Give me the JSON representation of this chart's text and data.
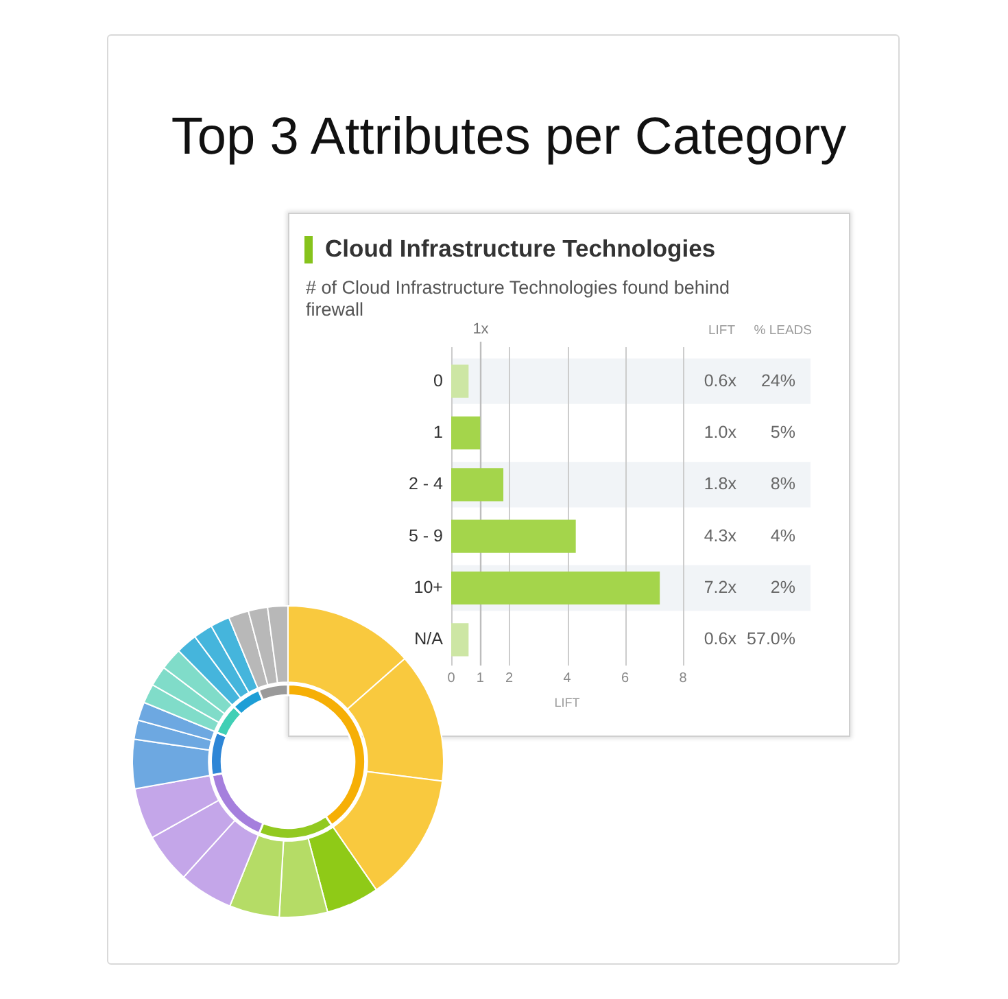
{
  "chart_data": [
    {
      "type": "other",
      "title": "Top 3 Attributes per Category"
    },
    {
      "type": "bar",
      "orientation": "horizontal",
      "title": "Cloud Infrastructure Technologies",
      "subtitle": "# of Cloud Infrastructure Technologies found behind firewall",
      "xlabel": "LIFT",
      "categories": [
        "0",
        "1",
        "2 - 4",
        "5 - 9",
        "10+",
        "N/A"
      ],
      "values": [
        0.6,
        1.0,
        1.8,
        4.3,
        7.2,
        0.6
      ],
      "colors": [
        "#cde6a4",
        "#a4d54b",
        "#a4d54b",
        "#a4d54b",
        "#a4d54b",
        "#cde6a4"
      ],
      "value_labels": [
        "0.6x",
        "1.0x",
        "1.8x",
        "4.3x",
        "7.2x",
        "0.6x"
      ],
      "xlim": [
        0,
        8
      ],
      "xticks": [
        0,
        1,
        2,
        4,
        6,
        8
      ],
      "grid": "x",
      "ref_lines": [
        {
          "axis": "x",
          "value": 1,
          "label": "1x",
          "color": "#bdbdbd"
        }
      ],
      "bands": [
        {
          "axis": "y",
          "from": "0",
          "to": "0",
          "color": "#f1f4f7"
        },
        {
          "axis": "y",
          "from": "2 - 4",
          "to": "2 - 4",
          "color": "#f1f4f7"
        },
        {
          "axis": "y",
          "from": "10+",
          "to": "10+",
          "color": "#f1f4f7"
        }
      ],
      "annotations": [
        "LIFT",
        "% LEADS",
        "24%",
        "5%",
        "8%",
        "4%",
        "2%",
        "57.0%"
      ]
    },
    {
      "type": "donut",
      "categories": [
        null,
        null,
        null,
        null,
        null,
        null,
        null,
        null,
        null,
        null,
        null,
        null,
        null,
        null,
        null,
        null,
        null,
        null,
        null,
        null,
        null
      ],
      "values": [
        13.5,
        13.5,
        13.4,
        5.5,
        5.0,
        5.2,
        5.6,
        5.2,
        5.3,
        5.1,
        2.0,
        1.9,
        2.0,
        2.1,
        2.3,
        2.2,
        2.0,
        2.0,
        2.1,
        2.0,
        2.1
      ],
      "colors": [
        "#f9c93e",
        "#f9c93e",
        "#f9c93e",
        "#8fca17",
        "#b5dc66",
        "#b5dc66",
        "#c4a6e9",
        "#c4a6e9",
        "#c4a6e9",
        "#6da8e1",
        "#6da8e1",
        "#6da8e1",
        "#80dcc9",
        "#80dcc9",
        "#80dcc9",
        "#45b5dc",
        "#45b5dc",
        "#45b5dc",
        "#b8b8b8",
        "#b8b8b8",
        "#b8b8b8"
      ]
    },
    {
      "type": "donut",
      "categories": [
        null,
        null,
        null,
        null,
        null,
        null,
        null
      ],
      "values": [
        40.4,
        15.7,
        16.1,
        9.0,
        6.4,
        6.2,
        6.2
      ],
      "colors": [
        "#f6af05",
        "#92c920",
        "#a57fdd",
        "#2e86d6",
        "#40cfb5",
        "#1d9ed6",
        "#9a9a9a"
      ]
    }
  ]
}
